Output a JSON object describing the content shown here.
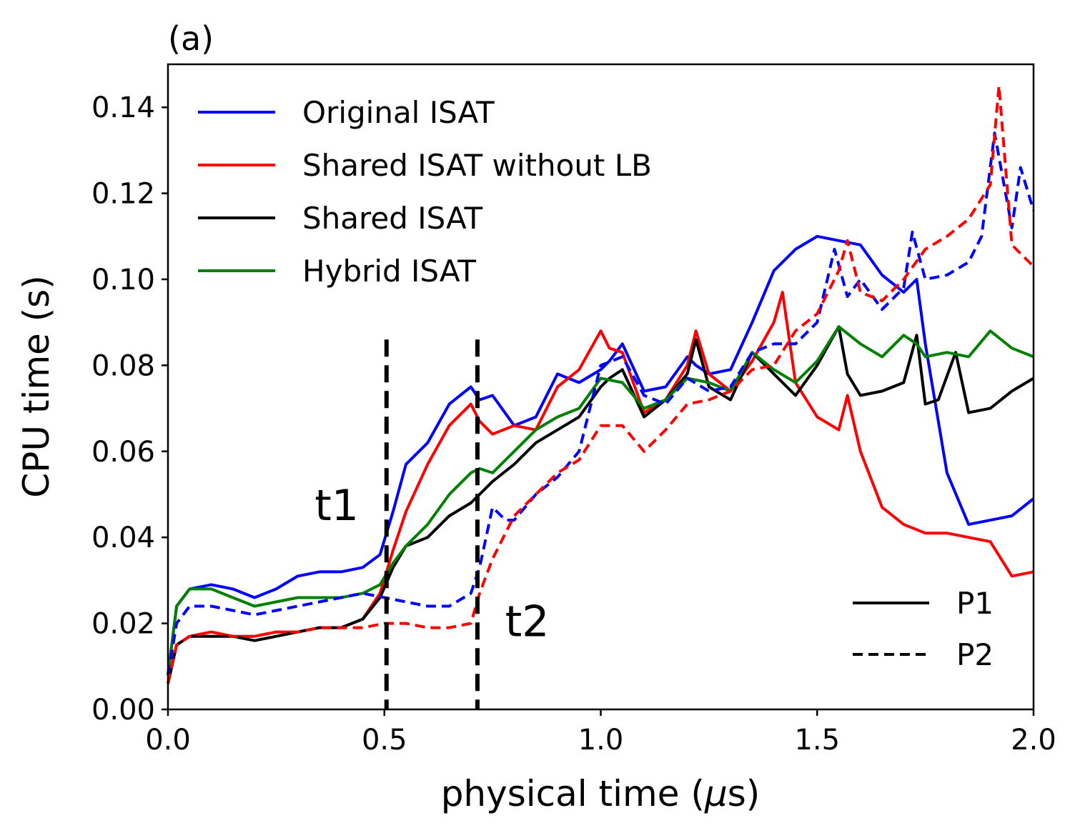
{
  "chart_data": {
    "type": "line",
    "panel_label": "(a)",
    "xlabel_prefix": "physical time (",
    "xlabel_mu": "μ",
    "xlabel_suffix": "s)",
    "ylabel": "CPU time (s)",
    "xlim": [
      0.0,
      2.0
    ],
    "ylim": [
      0.0,
      0.15
    ],
    "xticks": [
      0.0,
      0.5,
      1.0,
      1.5,
      2.0
    ],
    "xtick_labels": [
      "0.0",
      "0.5",
      "1.0",
      "1.5",
      "2.0"
    ],
    "yticks": [
      0.0,
      0.02,
      0.04,
      0.06,
      0.08,
      0.1,
      0.12,
      0.14
    ],
    "ytick_labels": [
      "0.00",
      "0.02",
      "0.04",
      "0.06",
      "0.08",
      "0.10",
      "0.12",
      "0.14"
    ],
    "grid": false,
    "legend_methods": [
      {
        "label": "Original ISAT",
        "color": "#0000ff"
      },
      {
        "label": "Shared ISAT without LB",
        "color": "#ff0000"
      },
      {
        "label": "Shared ISAT",
        "color": "#000000"
      },
      {
        "label": "Hybrid ISAT",
        "color": "#008000"
      }
    ],
    "legend_methods_position": "upper-left",
    "legend_styles": [
      {
        "label": "P1",
        "style": "solid"
      },
      {
        "label": "P2",
        "style": "dashed"
      }
    ],
    "legend_styles_position": "lower-right",
    "vlines": [
      {
        "x": 0.505,
        "label": "t1",
        "label_at": [
          0.39,
          0.044
        ]
      },
      {
        "x": 0.715,
        "label": "t2",
        "label_at": [
          0.83,
          0.017
        ]
      }
    ],
    "series": [
      {
        "name": "Original ISAT",
        "group": "P1",
        "color": "#0000ff",
        "style": "solid",
        "x": [
          0.0,
          0.02,
          0.05,
          0.1,
          0.15,
          0.2,
          0.25,
          0.3,
          0.35,
          0.4,
          0.45,
          0.49,
          0.52,
          0.55,
          0.6,
          0.65,
          0.7,
          0.72,
          0.75,
          0.8,
          0.85,
          0.9,
          0.95,
          1.0,
          1.02,
          1.05,
          1.1,
          1.15,
          1.2,
          1.22,
          1.25,
          1.3,
          1.35,
          1.4,
          1.45,
          1.5,
          1.55,
          1.6,
          1.65,
          1.7,
          1.73,
          1.75,
          1.8,
          1.85,
          1.9,
          1.95,
          2.0
        ],
        "y": [
          0.008,
          0.024,
          0.028,
          0.029,
          0.028,
          0.026,
          0.028,
          0.031,
          0.032,
          0.032,
          0.033,
          0.036,
          0.046,
          0.057,
          0.062,
          0.071,
          0.075,
          0.072,
          0.073,
          0.066,
          0.068,
          0.078,
          0.076,
          0.079,
          0.081,
          0.085,
          0.074,
          0.075,
          0.082,
          0.08,
          0.078,
          0.079,
          0.09,
          0.102,
          0.107,
          0.11,
          0.109,
          0.108,
          0.101,
          0.097,
          0.1,
          0.085,
          0.055,
          0.043,
          0.044,
          0.045,
          0.049
        ]
      },
      {
        "name": "Shared ISAT without LB",
        "group": "P1",
        "color": "#ff0000",
        "style": "solid",
        "x": [
          0.0,
          0.02,
          0.05,
          0.1,
          0.15,
          0.2,
          0.25,
          0.3,
          0.35,
          0.4,
          0.45,
          0.49,
          0.52,
          0.55,
          0.6,
          0.65,
          0.7,
          0.72,
          0.75,
          0.8,
          0.85,
          0.9,
          0.95,
          1.0,
          1.02,
          1.05,
          1.1,
          1.15,
          1.2,
          1.22,
          1.25,
          1.3,
          1.35,
          1.4,
          1.42,
          1.45,
          1.5,
          1.55,
          1.57,
          1.6,
          1.65,
          1.7,
          1.75,
          1.8,
          1.85,
          1.9,
          1.95,
          2.0
        ],
        "y": [
          0.006,
          0.015,
          0.017,
          0.018,
          0.017,
          0.017,
          0.018,
          0.018,
          0.019,
          0.019,
          0.021,
          0.027,
          0.037,
          0.046,
          0.057,
          0.066,
          0.071,
          0.067,
          0.064,
          0.066,
          0.065,
          0.075,
          0.079,
          0.088,
          0.084,
          0.083,
          0.069,
          0.072,
          0.08,
          0.088,
          0.078,
          0.074,
          0.081,
          0.09,
          0.097,
          0.076,
          0.068,
          0.065,
          0.073,
          0.06,
          0.047,
          0.043,
          0.041,
          0.041,
          0.04,
          0.039,
          0.031,
          0.032
        ]
      },
      {
        "name": "Shared ISAT",
        "group": "P1",
        "color": "#000000",
        "style": "solid",
        "x": [
          0.0,
          0.02,
          0.05,
          0.1,
          0.15,
          0.2,
          0.25,
          0.3,
          0.35,
          0.4,
          0.45,
          0.49,
          0.52,
          0.55,
          0.6,
          0.65,
          0.7,
          0.72,
          0.75,
          0.8,
          0.85,
          0.9,
          0.95,
          1.0,
          1.02,
          1.05,
          1.1,
          1.15,
          1.2,
          1.22,
          1.25,
          1.3,
          1.35,
          1.4,
          1.45,
          1.5,
          1.55,
          1.57,
          1.6,
          1.65,
          1.7,
          1.73,
          1.75,
          1.78,
          1.82,
          1.85,
          1.9,
          1.95,
          2.0
        ],
        "y": [
          0.006,
          0.015,
          0.017,
          0.017,
          0.017,
          0.016,
          0.017,
          0.018,
          0.019,
          0.019,
          0.021,
          0.026,
          0.033,
          0.038,
          0.04,
          0.045,
          0.048,
          0.05,
          0.053,
          0.057,
          0.062,
          0.065,
          0.068,
          0.075,
          0.077,
          0.079,
          0.068,
          0.072,
          0.078,
          0.086,
          0.075,
          0.072,
          0.083,
          0.078,
          0.073,
          0.08,
          0.089,
          0.078,
          0.073,
          0.074,
          0.076,
          0.087,
          0.071,
          0.072,
          0.083,
          0.069,
          0.07,
          0.074,
          0.077
        ]
      },
      {
        "name": "Hybrid ISAT",
        "group": "P1",
        "color": "#008000",
        "style": "solid",
        "x": [
          0.0,
          0.02,
          0.05,
          0.1,
          0.15,
          0.2,
          0.25,
          0.3,
          0.35,
          0.4,
          0.45,
          0.49,
          0.52,
          0.55,
          0.6,
          0.65,
          0.7,
          0.72,
          0.75,
          0.8,
          0.85,
          0.9,
          0.95,
          1.0,
          1.05,
          1.1,
          1.15,
          1.2,
          1.25,
          1.3,
          1.35,
          1.4,
          1.45,
          1.5,
          1.55,
          1.6,
          1.65,
          1.7,
          1.73,
          1.75,
          1.8,
          1.85,
          1.9,
          1.95,
          2.0
        ],
        "y": [
          0.008,
          0.024,
          0.028,
          0.028,
          0.026,
          0.024,
          0.025,
          0.026,
          0.026,
          0.026,
          0.027,
          0.029,
          0.034,
          0.038,
          0.043,
          0.05,
          0.055,
          0.056,
          0.055,
          0.06,
          0.065,
          0.068,
          0.07,
          0.077,
          0.076,
          0.07,
          0.072,
          0.077,
          0.076,
          0.074,
          0.083,
          0.079,
          0.076,
          0.081,
          0.089,
          0.085,
          0.082,
          0.087,
          0.085,
          0.082,
          0.083,
          0.082,
          0.088,
          0.084,
          0.082
        ]
      },
      {
        "name": "Original ISAT",
        "group": "P2",
        "color": "#0000ff",
        "style": "dashed",
        "x": [
          0.0,
          0.02,
          0.05,
          0.1,
          0.15,
          0.2,
          0.25,
          0.3,
          0.35,
          0.4,
          0.45,
          0.5,
          0.55,
          0.6,
          0.65,
          0.7,
          0.72,
          0.75,
          0.78,
          0.8,
          0.85,
          0.9,
          0.95,
          1.0,
          1.05,
          1.1,
          1.15,
          1.2,
          1.25,
          1.3,
          1.35,
          1.4,
          1.45,
          1.5,
          1.54,
          1.57,
          1.6,
          1.65,
          1.7,
          1.72,
          1.75,
          1.8,
          1.85,
          1.88,
          1.91,
          1.95,
          1.97,
          2.0
        ],
        "y": [
          0.008,
          0.02,
          0.024,
          0.024,
          0.023,
          0.022,
          0.023,
          0.024,
          0.025,
          0.026,
          0.027,
          0.026,
          0.025,
          0.024,
          0.024,
          0.027,
          0.033,
          0.047,
          0.044,
          0.044,
          0.05,
          0.054,
          0.06,
          0.08,
          0.082,
          0.073,
          0.071,
          0.077,
          0.074,
          0.075,
          0.083,
          0.085,
          0.085,
          0.09,
          0.107,
          0.096,
          0.1,
          0.093,
          0.098,
          0.111,
          0.1,
          0.101,
          0.104,
          0.11,
          0.134,
          0.112,
          0.126,
          0.116
        ]
      },
      {
        "name": "Shared ISAT without LB",
        "group": "P2",
        "color": "#ff0000",
        "style": "dashed",
        "x": [
          0.0,
          0.02,
          0.05,
          0.1,
          0.15,
          0.2,
          0.25,
          0.3,
          0.35,
          0.4,
          0.45,
          0.5,
          0.55,
          0.6,
          0.65,
          0.7,
          0.72,
          0.75,
          0.8,
          0.85,
          0.9,
          0.95,
          1.0,
          1.05,
          1.1,
          1.15,
          1.2,
          1.25,
          1.3,
          1.35,
          1.4,
          1.45,
          1.5,
          1.55,
          1.57,
          1.6,
          1.65,
          1.7,
          1.75,
          1.8,
          1.85,
          1.9,
          1.92,
          1.95,
          2.0
        ],
        "y": [
          0.006,
          0.015,
          0.017,
          0.018,
          0.017,
          0.017,
          0.018,
          0.018,
          0.019,
          0.019,
          0.019,
          0.02,
          0.02,
          0.019,
          0.019,
          0.02,
          0.027,
          0.035,
          0.045,
          0.05,
          0.055,
          0.058,
          0.066,
          0.066,
          0.06,
          0.065,
          0.071,
          0.072,
          0.074,
          0.079,
          0.08,
          0.088,
          0.092,
          0.102,
          0.109,
          0.097,
          0.095,
          0.1,
          0.107,
          0.11,
          0.114,
          0.122,
          0.145,
          0.108,
          0.103
        ]
      },
      {
        "name": "Shared ISAT",
        "group": "P2",
        "color": "#000000",
        "style": "dashed",
        "x": [],
        "y": []
      },
      {
        "name": "Hybrid ISAT",
        "group": "P2",
        "color": "#008000",
        "style": "dashed",
        "x": [],
        "y": []
      }
    ]
  }
}
